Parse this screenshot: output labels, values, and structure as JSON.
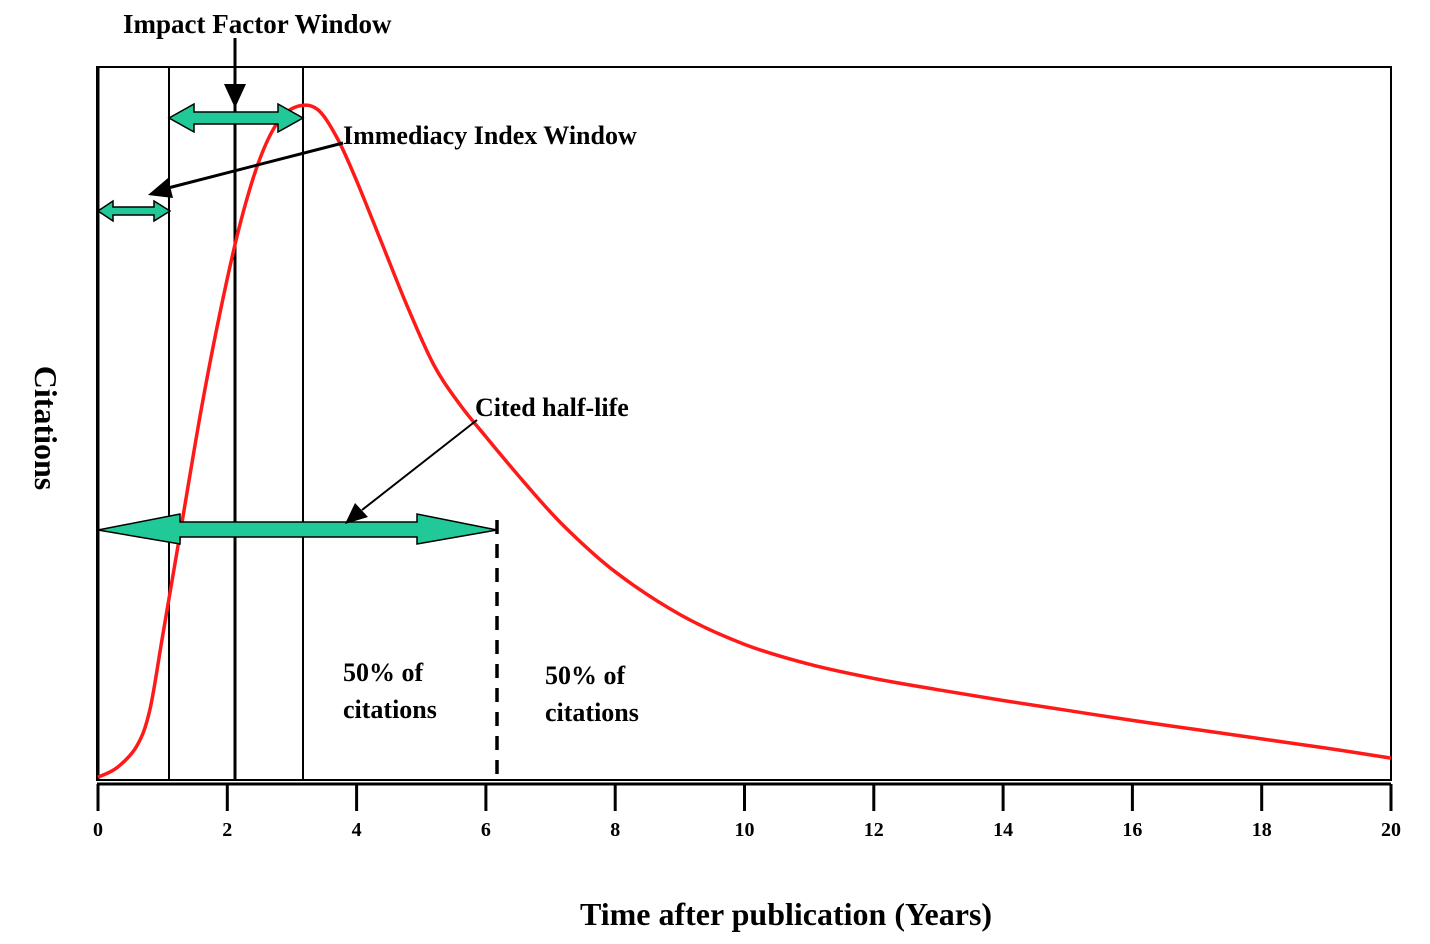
{
  "chart_data": {
    "type": "line",
    "title": "",
    "xlabel": "Time after publication (Years)",
    "ylabel": "Citations",
    "xlim": [
      0,
      20
    ],
    "x_ticks": [
      "0",
      "2",
      "4",
      "6",
      "8",
      "10",
      "12",
      "14",
      "16",
      "18",
      "20"
    ],
    "series": [
      {
        "color": "#ff1a1a",
        "x": [
          0,
          0.3,
          0.6,
          0.8,
          1.0,
          1.3,
          1.6,
          1.9,
          2.2,
          2.5,
          2.8,
          3.1,
          3.4,
          3.7,
          4.0,
          4.4,
          4.8,
          5.2,
          5.6,
          6.0,
          6.6,
          7.2,
          8.0,
          9.0,
          10.0,
          11.0,
          12.0,
          13.0,
          14.0,
          15.0,
          16.0,
          17.0,
          18.0,
          19.0,
          20.0
        ],
        "y": [
          0.1,
          1.5,
          4.5,
          9.5,
          20,
          36,
          52,
          66,
          78,
          87,
          92.5,
          94.5,
          94,
          90,
          84,
          75,
          66,
          58,
          52.5,
          48,
          41.5,
          35.5,
          29,
          23,
          18.8,
          16,
          14,
          12.4,
          10.9,
          9.5,
          8.1,
          6.8,
          5.5,
          4.2,
          2.8
        ]
      }
    ]
  },
  "annotations": {
    "impact_factor_window": "Impact Factor Window",
    "immediacy_index_window": "Immediacy Index Window",
    "cited_half_life": "Cited half-life",
    "left_pct_line1": "50% of",
    "left_pct_line2": "citations",
    "right_pct_line1": "50% of",
    "right_pct_line2": "citations"
  },
  "colors": {
    "curve": "#ff1a1a",
    "arrow_fill": "#20c997",
    "frame": "#000000"
  }
}
